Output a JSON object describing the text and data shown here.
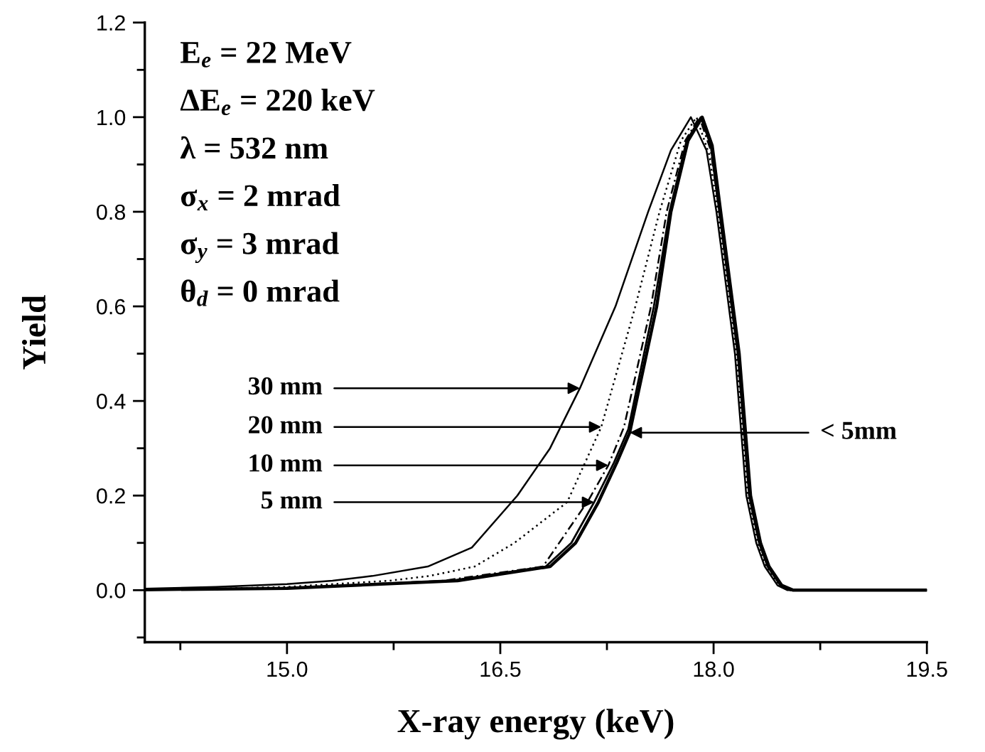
{
  "chart_data": {
    "type": "line",
    "xlabel": "X-ray energy (keV)",
    "ylabel": "Yield",
    "xlim": [
      14.0,
      19.5
    ],
    "ylim": [
      -0.11,
      1.2
    ],
    "xticks": [
      {
        "value": 15,
        "label": "15.0"
      },
      {
        "value": 16.5,
        "label": "16.5"
      },
      {
        "value": 18,
        "label": "18.0"
      },
      {
        "value": 19.5,
        "label": "19.5"
      }
    ],
    "yticks": [
      {
        "value": 0,
        "label": "0.0"
      },
      {
        "value": 0.2,
        "label": "0.2"
      },
      {
        "value": 0.4,
        "label": "0.4"
      },
      {
        "value": 0.6,
        "label": "0.6"
      },
      {
        "value": 0.8,
        "label": "0.8"
      },
      {
        "value": 1,
        "label": "1.0"
      },
      {
        "value": 1.2,
        "label": "1.2"
      }
    ],
    "grid": false,
    "legend": false,
    "marker": "none",
    "series": [
      {
        "color": "#000000",
        "line_style": "solid",
        "x": [
          14.0,
          14.5,
          15.0,
          15.32,
          15.6,
          15.99,
          16.3,
          16.62,
          16.85,
          17.06,
          17.31,
          17.54,
          17.7,
          17.84,
          17.95,
          18.02,
          18.15,
          18.23,
          18.3,
          18.36,
          18.45,
          18.52,
          19.5
        ],
        "values": [
          0.003,
          0.007,
          0.013,
          0.02,
          0.03,
          0.05,
          0.09,
          0.2,
          0.3,
          0.427,
          0.6,
          0.8,
          0.93,
          1.0,
          0.93,
          0.8,
          0.5,
          0.2,
          0.1,
          0.05,
          0.01,
          0,
          0
        ]
      },
      {
        "color": "#000000",
        "line_style": "dotted",
        "x": [
          14.0,
          14.5,
          15.0,
          15.72,
          16.0,
          16.32,
          16.6,
          16.97,
          17.21,
          17.45,
          17.62,
          17.77,
          17.88,
          17.97,
          18.03,
          18.16,
          18.24,
          18.31,
          18.37,
          18.46,
          18.53,
          19.5
        ],
        "values": [
          0.001,
          0.003,
          0.007,
          0.02,
          0.03,
          0.05,
          0.1,
          0.186,
          0.345,
          0.6,
          0.8,
          0.95,
          1.0,
          0.92,
          0.8,
          0.5,
          0.2,
          0.1,
          0.05,
          0.01,
          0,
          0
        ]
      },
      {
        "color": "#000000",
        "line_style": "dashed",
        "x": [
          14.0,
          14.5,
          15.0,
          16.1,
          16.8,
          17.12,
          17.26,
          17.37,
          17.56,
          17.67,
          17.8,
          17.9,
          17.98,
          18.04,
          18.17,
          18.25,
          18.32,
          18.38,
          18.47,
          18.54,
          19.5
        ],
        "values": [
          0.001,
          0.002,
          0.005,
          0.02,
          0.05,
          0.19,
          0.264,
          0.345,
          0.6,
          0.8,
          0.95,
          1.0,
          0.93,
          0.8,
          0.5,
          0.2,
          0.1,
          0.05,
          0.01,
          0,
          0
        ]
      },
      {
        "color": "#000000",
        "line_style": "solid",
        "x": [
          14.0,
          15.0,
          16.15,
          16.82,
          17.0,
          17.16,
          17.3,
          17.4,
          17.58,
          17.69,
          17.81,
          17.91,
          17.98,
          18.04,
          18.17,
          18.25,
          18.32,
          18.38,
          18.47,
          18.55,
          19.5
        ],
        "values": [
          0.001,
          0.004,
          0.02,
          0.05,
          0.1,
          0.186,
          0.27,
          0.34,
          0.6,
          0.8,
          0.95,
          1.0,
          0.94,
          0.8,
          0.5,
          0.2,
          0.1,
          0.05,
          0.01,
          0,
          0
        ]
      },
      {
        "color": "#000000",
        "line_style": "solid",
        "x": [
          14.0,
          15.0,
          16.2,
          16.85,
          17.03,
          17.19,
          17.32,
          17.41,
          17.6,
          17.7,
          17.82,
          17.92,
          17.99,
          18.05,
          18.18,
          18.26,
          18.33,
          18.39,
          18.48,
          18.56,
          19.5
        ],
        "values": [
          0.001,
          0.004,
          0.02,
          0.05,
          0.1,
          0.186,
          0.27,
          0.333,
          0.6,
          0.8,
          0.95,
          1.0,
          0.94,
          0.8,
          0.5,
          0.2,
          0.1,
          0.05,
          0.01,
          0,
          0
        ]
      }
    ],
    "annotations": [
      "E$_{e}$ = 22 MeV",
      "ΔE$_{e}$ = 220 keV",
      "λ = 532 nm",
      "σ$_{x}$ = 2 mrad",
      "σ$_{y}$ = 3 mrad",
      "θ$_{d}$ = 0 mrad",
      {
        "text": "30 mm",
        "x": 17.06,
        "y": 0.427
      },
      {
        "text": "20 mm",
        "x": 17.21,
        "y": 0.345
      },
      {
        "text": "10 mm",
        "x": 17.26,
        "y": 0.264
      },
      {
        "text": "5 mm",
        "x": 17.16,
        "y": 0.186
      },
      {
        "text": "< 5mm",
        "x": 17.41,
        "y": 0.333
      }
    ]
  }
}
